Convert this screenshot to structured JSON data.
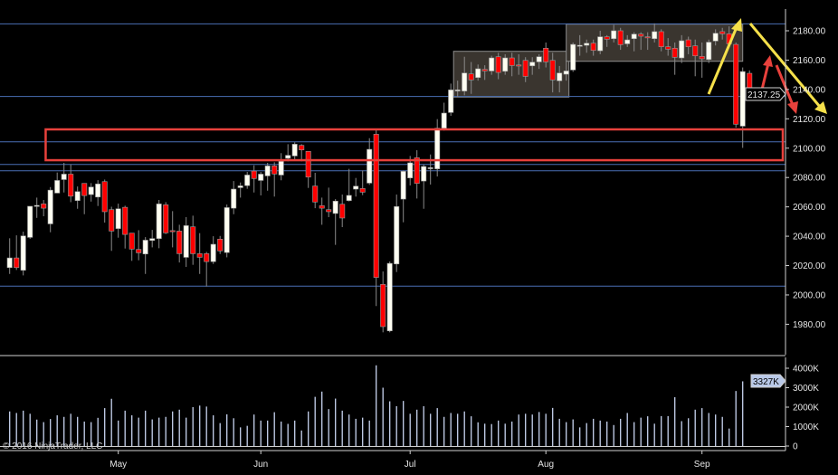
{
  "chart_data": {
    "type": "candlestick",
    "title": "",
    "copyright": "© 2016 NinjaTrader, LLC",
    "price_axis": {
      "ylim": [
        1970,
        2190
      ],
      "ticks": [
        1980,
        2000,
        2020,
        2040,
        2060,
        2080,
        2100,
        2120,
        2140,
        2160,
        2180
      ],
      "tick_labels": [
        "1980.00",
        "2000.00",
        "2020.00",
        "2040.00",
        "2060.00",
        "2080.00",
        "2100.00",
        "2120.00",
        "2140.00",
        "2160.00",
        "2180.00"
      ]
    },
    "last_price": 2137.25,
    "last_price_label": "2137.25",
    "volume_axis": {
      "ylim": [
        0,
        4500
      ],
      "ticks": [
        0,
        1000,
        2000,
        3000,
        4000
      ],
      "tick_labels": [
        "0",
        "1000K",
        "2000K",
        "3000K",
        "4000K"
      ]
    },
    "last_volume_label": "3327K",
    "months": [
      {
        "label": "May",
        "bar_index": 16
      },
      {
        "label": "Jun",
        "bar_index": 37
      },
      {
        "label": "Jul",
        "bar_index": 59
      },
      {
        "label": "Aug",
        "bar_index": 79
      },
      {
        "label": "Sep",
        "bar_index": 102
      }
    ],
    "ohlc_fields": [
      "open",
      "high",
      "low",
      "close"
    ],
    "ohlc": [
      [
        2018.6,
        2038.6,
        2014.3,
        2025.2
      ],
      [
        2025.2,
        2040.6,
        2017.0,
        2018.6
      ],
      [
        2016.8,
        2043.1,
        2013.3,
        2040.2
      ],
      [
        2039.2,
        2060.4,
        2038.2,
        2060.4
      ],
      [
        2060.6,
        2066.3,
        2052.5,
        2061.0
      ],
      [
        2062.0,
        2064.7,
        2053.6,
        2059.1
      ],
      [
        2048.4,
        2073.5,
        2042.7,
        2071.4
      ],
      [
        2069.4,
        2083.4,
        2069.4,
        2078.0
      ],
      [
        2078.6,
        2090.0,
        2069.8,
        2082.3
      ],
      [
        2082.3,
        2088.9,
        2063.2,
        2067.3
      ],
      [
        2064.3,
        2073.9,
        2058.7,
        2070.4
      ],
      [
        2076.0,
        2076.0,
        2055.0,
        2067.7
      ],
      [
        2068.4,
        2076.2,
        2063.6,
        2073.5
      ],
      [
        2066.7,
        2078.2,
        2060.6,
        2075.6
      ],
      [
        2077.2,
        2078.6,
        2049.3,
        2056.7
      ],
      [
        2058.1,
        2060.1,
        2030.0,
        2043.5
      ],
      [
        2045.2,
        2062.2,
        2039.0,
        2058.7
      ],
      [
        2059.7,
        2060.8,
        2031.6,
        2041.2
      ],
      [
        2042.1,
        2042.1,
        2023.2,
        2031.2
      ],
      [
        2031.0,
        2044.1,
        2023.6,
        2028.7
      ],
      [
        2027.9,
        2039.4,
        2014.3,
        2037.3
      ],
      [
        2037.1,
        2044.3,
        2032.4,
        2038.4
      ],
      [
        2038.4,
        2064.7,
        2031.8,
        2062.0
      ],
      [
        2061.4,
        2063.2,
        2041.5,
        2042.3
      ],
      [
        2043.8,
        2057.1,
        2032.4,
        2043.1
      ],
      [
        2043.5,
        2047.8,
        2022.1,
        2028.1
      ],
      [
        2025.6,
        2053.0,
        2019.1,
        2047.2
      ],
      [
        2046.4,
        2054.0,
        2020.5,
        2028.1
      ],
      [
        2028.1,
        2042.1,
        2014.3,
        2025.6
      ],
      [
        2028.1,
        2029.3,
        2005.7,
        2022.7
      ],
      [
        2022.7,
        2040.0,
        2021.1,
        2034.5
      ],
      [
        2038.0,
        2040.2,
        2027.9,
        2030.0
      ],
      [
        2028.9,
        2061.6,
        2025.6,
        2059.5
      ],
      [
        2059.1,
        2077.6,
        2055.0,
        2072.1
      ],
      [
        2073.1,
        2076.6,
        2066.3,
        2074.3
      ],
      [
        2074.5,
        2083.8,
        2072.3,
        2081.7
      ],
      [
        2084.4,
        2088.3,
        2069.8,
        2079.3
      ],
      [
        2078.0,
        2083.8,
        2067.8,
        2082.3
      ],
      [
        2081.1,
        2090.0,
        2071.0,
        2087.9
      ],
      [
        2087.9,
        2090.4,
        2067.0,
        2082.4
      ],
      [
        2081.7,
        2096.6,
        2078.1,
        2091.0
      ],
      [
        2093.1,
        2102.7,
        2091.0,
        2095.1
      ],
      [
        2094.7,
        2104.0,
        2092.0,
        2102.7
      ],
      [
        2101.9,
        2102.7,
        2091.0,
        2098.8
      ],
      [
        2097.8,
        2097.8,
        2072.9,
        2080.3
      ],
      [
        2074.2,
        2083.2,
        2059.1,
        2063.3
      ],
      [
        2060.8,
        2066.3,
        2047.8,
        2059.1
      ],
      [
        2058.1,
        2073.1,
        2053.0,
        2056.7
      ],
      [
        2055.5,
        2065.3,
        2034.1,
        2063.9
      ],
      [
        2061.8,
        2068.4,
        2046.2,
        2052.4
      ],
      [
        2064.3,
        2085.9,
        2063.7,
        2067.8
      ],
      [
        2072.1,
        2079.7,
        2067.0,
        2074.1
      ],
      [
        2072.5,
        2084.8,
        2068.0,
        2070.0
      ],
      [
        2076.2,
        2106.8,
        2075.0,
        2099.2
      ],
      [
        2109.5,
        2112.2,
        1992.4,
        2011.9
      ],
      [
        2007.2,
        2016.0,
        1974.5,
        1978.4
      ],
      [
        1975.5,
        2022.8,
        1974.5,
        2021.5
      ],
      [
        2021.1,
        2068.4,
        2015.6,
        2060.2
      ],
      [
        2065.3,
        2084.8,
        2049.5,
        2084.2
      ],
      [
        2079.7,
        2094.7,
        2074.6,
        2090.0
      ],
      [
        2093.5,
        2098.6,
        2065.7,
        2076.0
      ],
      [
        2077.6,
        2088.9,
        2058.7,
        2087.5
      ],
      [
        2086.3,
        2095.7,
        2075.2,
        2086.7
      ],
      [
        2085.9,
        2119.8,
        2080.7,
        2113.6
      ],
      [
        2113.6,
        2131.0,
        2112.0,
        2123.9
      ],
      [
        2124.3,
        2144.0,
        2122.0,
        2139.7
      ],
      [
        2139.3,
        2146.0,
        2135.0,
        2139.7
      ],
      [
        2138.9,
        2162.3,
        2136.0,
        2151.2
      ],
      [
        2150.6,
        2158.7,
        2137.0,
        2146.5
      ],
      [
        2148.1,
        2157.0,
        2146.0,
        2154.1
      ],
      [
        2153.7,
        2156.5,
        2146.5,
        2152.6
      ],
      [
        2152.6,
        2163.0,
        2150.0,
        2161.5
      ],
      [
        2162.3,
        2165.0,
        2147.0,
        2151.6
      ],
      [
        2152.4,
        2164.0,
        2150.0,
        2161.5
      ],
      [
        2161.5,
        2165.0,
        2149.0,
        2156.3
      ],
      [
        2156.7,
        2164.0,
        2150.0,
        2156.1
      ],
      [
        2159.8,
        2162.0,
        2145.0,
        2148.9
      ],
      [
        2156.1,
        2162.0,
        2150.0,
        2158.6
      ],
      [
        2158.8,
        2164.0,
        2154.0,
        2162.3
      ],
      [
        2168.1,
        2172.0,
        2155.0,
        2158.8
      ],
      [
        2159.8,
        2165.0,
        2138.0,
        2146.5
      ],
      [
        2145.9,
        2156.0,
        2138.0,
        2151.2
      ],
      [
        2150.4,
        2160.0,
        2146.0,
        2152.6
      ],
      [
        2153.3,
        2172.0,
        2152.0,
        2170.7
      ],
      [
        2169.5,
        2177.0,
        2163.0,
        2170.1
      ],
      [
        2170.1,
        2174.0,
        2165.0,
        2171.5
      ],
      [
        2171.5,
        2174.0,
        2163.0,
        2166.6
      ],
      [
        2166.4,
        2180.0,
        2164.0,
        2175.9
      ],
      [
        2175.9,
        2177.0,
        2169.0,
        2174.2
      ],
      [
        2174.6,
        2184.0,
        2172.0,
        2180.0
      ],
      [
        2180.0,
        2182.0,
        2167.0,
        2170.5
      ],
      [
        2171.1,
        2177.0,
        2169.0,
        2173.8
      ],
      [
        2174.6,
        2179.0,
        2166.0,
        2177.7
      ],
      [
        2177.7,
        2179.0,
        2167.0,
        2176.3
      ],
      [
        2175.9,
        2179.0,
        2167.0,
        2175.5
      ],
      [
        2174.6,
        2185.0,
        2172.0,
        2179.4
      ],
      [
        2179.4,
        2181.0,
        2166.0,
        2169.1
      ],
      [
        2169.1,
        2175.0,
        2163.0,
        2167.4
      ],
      [
        2168.1,
        2172.0,
        2150.0,
        2161.9
      ],
      [
        2161.5,
        2177.0,
        2158.0,
        2173.2
      ],
      [
        2173.8,
        2176.0,
        2164.0,
        2169.1
      ],
      [
        2169.7,
        2174.0,
        2149.0,
        2162.9
      ],
      [
        2162.5,
        2172.0,
        2148.0,
        2160.9
      ],
      [
        2160.4,
        2174.0,
        2158.0,
        2172.2
      ],
      [
        2173.0,
        2181.0,
        2170.0,
        2178.3
      ],
      [
        2179.4,
        2182.0,
        2174.0,
        2177.9
      ],
      [
        2177.9,
        2183.0,
        2169.0,
        2171.1
      ],
      [
        2170.7,
        2172.0,
        2114.0,
        2116.3
      ],
      [
        2115.0,
        2155.0,
        2100.2,
        2152.2
      ],
      [
        2151.0,
        2153.0,
        2136.0,
        2137.25
      ]
    ],
    "volume_k": [
      1780,
      1700,
      1820,
      1660,
      1360,
      1230,
      1390,
      1580,
      1500,
      1660,
      1500,
      1260,
      1230,
      1450,
      1950,
      2430,
      1310,
      1820,
      1580,
      1460,
      1820,
      1370,
      1460,
      1500,
      1780,
      1870,
      1460,
      2000,
      2080,
      2030,
      1580,
      1180,
      1630,
      1430,
      960,
      1040,
      1620,
      1310,
      1310,
      1740,
      1260,
      1140,
      1310,
      800,
      1780,
      2530,
      2800,
      1900,
      2440,
      1820,
      1620,
      1400,
      1460,
      1310,
      4150,
      3000,
      2300,
      2050,
      2320,
      1660,
      1870,
      2050,
      1660,
      1950,
      1500,
      1700,
      1660,
      1780,
      1530,
      1220,
      1150,
      1130,
      1310,
      1150,
      1260,
      1620,
      1660,
      1620,
      1750,
      1660,
      1960,
      1400,
      1230,
      1370,
      960,
      1180,
      1400,
      1310,
      1260,
      1080,
      1400,
      1700,
      1230,
      1460,
      1530,
      1150,
      1540,
      1540,
      2510,
      1280,
      1430,
      1870,
      1950,
      1700,
      1620,
      1500,
      900,
      2830,
      3327,
      null
    ],
    "horizontal_lines": [
      2184.7,
      2135.2,
      2104.3,
      2088.9,
      2084.6,
      2006.0
    ],
    "zones": [
      {
        "kind": "support-resistance",
        "from_bar": 5.3,
        "price_top": 2112.8,
        "price_bottom": 2091.8,
        "color": "#e8413c"
      },
      {
        "kind": "consolidation",
        "from_bar": 65.4,
        "to_bar": 82.4,
        "price_top": 2166.0,
        "price_bottom": 2134.8,
        "color": "#3a352f"
      },
      {
        "kind": "consolidation",
        "from_bar": 82.0,
        "to_bar": 108.0,
        "price_top": 2184.5,
        "price_bottom": 2159.2,
        "color": "#3a352f"
      }
    ],
    "colors": {
      "background": "#000000",
      "up": "#fffff2",
      "down": "#ff0000",
      "wick": "#8a8a8a",
      "grid": "#4a6fb5",
      "volume": "#c8d4f0",
      "annotation_yellow": "#f5e04a",
      "annotation_red": "#e8413c"
    }
  }
}
